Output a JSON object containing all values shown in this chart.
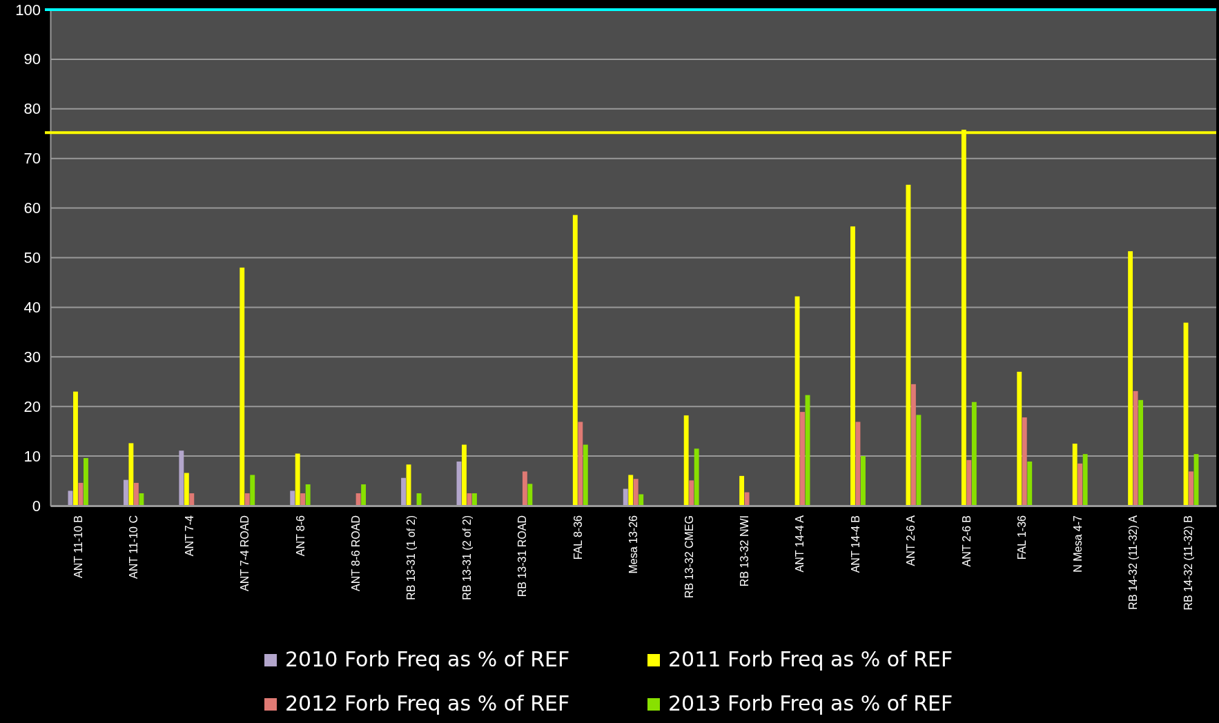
{
  "chart_data": {
    "type": "bar",
    "categories": [
      "ANT 11-10 B",
      "ANT 11-10 C",
      "ANT 7-4",
      "ANT 7-4 ROAD",
      "ANT 8-6",
      "ANT 8-6 ROAD",
      "RB 13-31 (1 of 2)",
      "RB 13-31 (2 of 2)",
      "RB 13-31 ROAD",
      "FAL 8-36",
      "Mesa 13-26",
      "RB 13-32 CMEG",
      "RB 13-32 NWI",
      "ANT 14-4 A",
      "ANT 14-4 B",
      "ANT 2-6 A",
      "ANT 2-6 B",
      "FAL 1-36",
      "N Mesa 4-7",
      "RB 14-32 (11-32) A",
      "RB 14-32 (11-32) B"
    ],
    "series": [
      {
        "name": "2010 Forb Freq as % of REF",
        "color": "#b3a6cc",
        "values": [
          3.0,
          5.2,
          11.1,
          null,
          3.0,
          null,
          5.6,
          8.9,
          null,
          null,
          3.4,
          null,
          null,
          null,
          null,
          null,
          null,
          null,
          null,
          null,
          null
        ]
      },
      {
        "name": "2011 Forb Freq as % of REF",
        "color": "#ffff00",
        "values": [
          23.0,
          12.6,
          6.6,
          48.0,
          10.5,
          null,
          8.3,
          12.3,
          null,
          58.6,
          6.2,
          18.2,
          6.0,
          42.2,
          56.3,
          64.7,
          75.8,
          27.0,
          12.5,
          51.3,
          36.9
        ]
      },
      {
        "name": "2012 Forb Freq as % of REF",
        "color": "#e07a74",
        "values": [
          4.6,
          4.6,
          2.5,
          2.5,
          2.5,
          2.5,
          null,
          2.5,
          6.9,
          16.9,
          5.4,
          5.1,
          2.7,
          18.9,
          16.9,
          24.5,
          9.2,
          17.8,
          8.5,
          23.1,
          6.9
        ]
      },
      {
        "name": "2013 Forb Freq as % of REF",
        "color": "#88e000",
        "values": [
          9.6,
          2.5,
          null,
          6.2,
          4.3,
          4.3,
          2.5,
          2.5,
          4.4,
          12.3,
          2.3,
          11.5,
          null,
          22.3,
          10.0,
          18.3,
          20.9,
          8.9,
          10.4,
          21.3,
          10.4
        ]
      }
    ],
    "ylim": [
      0,
      100
    ],
    "yticks": [
      0,
      10,
      20,
      30,
      40,
      50,
      60,
      70,
      80,
      90,
      100
    ],
    "grid": "y",
    "legend": "bottom",
    "ref_lines": [
      {
        "axis": "y",
        "value": 100,
        "color": "#00ffff"
      },
      {
        "axis": "y",
        "value": 75.2,
        "color": "#ffff00"
      }
    ]
  }
}
